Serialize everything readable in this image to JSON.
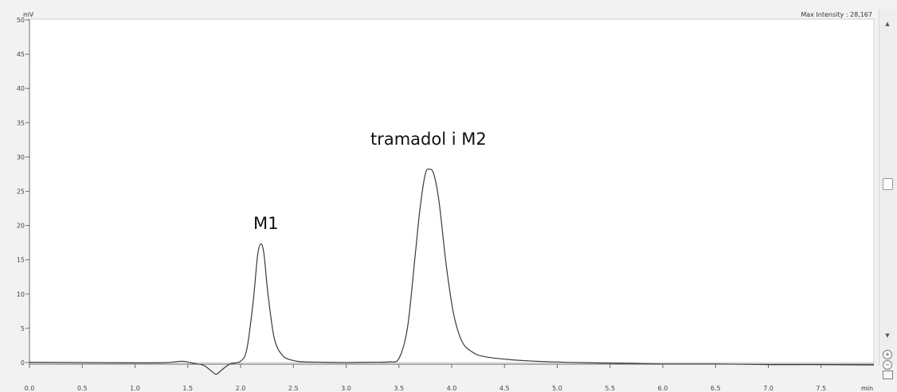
{
  "header": {
    "max_intensity_label": "Max Intensity : 28,167"
  },
  "chart_data": {
    "type": "line",
    "title": "",
    "ylabel": "mV",
    "xlabel": "min",
    "xlim": [
      0.0,
      8.0
    ],
    "ylim": [
      -3,
      50
    ],
    "x_ticks": [
      0.0,
      0.5,
      1.0,
      1.5,
      2.0,
      2.5,
      3.0,
      3.5,
      4.0,
      4.5,
      5.0,
      5.5,
      6.0,
      6.5,
      7.0,
      7.5
    ],
    "x_tick_labels": [
      "0.0",
      "0.5",
      "1.0",
      "1.5",
      "2.0",
      "2.5",
      "3.0",
      "3.5",
      "4.0",
      "4.5",
      "5.0",
      "5.5",
      "6.0",
      "6.5",
      "7.0",
      "7.5"
    ],
    "y_ticks": [
      0,
      5,
      10,
      15,
      20,
      25,
      30,
      35,
      40,
      45,
      50
    ],
    "y_tick_labels": [
      "0",
      "5",
      "10",
      "15",
      "20",
      "25",
      "30",
      "35",
      "40",
      "45",
      "50"
    ],
    "grid": false,
    "series": [
      {
        "x": [
          0.0,
          0.5,
          1.0,
          1.3,
          1.45,
          1.55,
          1.65,
          1.72,
          1.77,
          1.82,
          1.9,
          2.0,
          2.06,
          2.12,
          2.16,
          2.19,
          2.22,
          2.26,
          2.32,
          2.4,
          2.5,
          2.6,
          2.8,
          3.0,
          3.2,
          3.4,
          3.5,
          3.58,
          3.65,
          3.7,
          3.75,
          3.79,
          3.83,
          3.88,
          3.95,
          4.02,
          4.1,
          4.2,
          4.3,
          4.5,
          4.8,
          5.2,
          5.6,
          6.0,
          6.5,
          7.0,
          7.5,
          8.0
        ],
        "y": [
          0.05,
          0.0,
          -0.05,
          0.0,
          0.2,
          -0.1,
          -0.4,
          -1.2,
          -1.7,
          -1.1,
          -0.2,
          0.2,
          2.0,
          9.0,
          15.5,
          17.3,
          16.0,
          10.0,
          3.5,
          1.0,
          0.3,
          0.1,
          0.05,
          0.0,
          0.05,
          0.1,
          0.6,
          5.0,
          15.0,
          22.5,
          27.5,
          28.2,
          27.5,
          23.5,
          14.0,
          7.0,
          3.0,
          1.5,
          0.9,
          0.5,
          0.2,
          0.0,
          -0.1,
          -0.2,
          -0.2,
          -0.3,
          -0.3,
          -0.35
        ]
      }
    ],
    "annotations": [
      {
        "text": "M1",
        "x": 2.24,
        "y": 19.5
      },
      {
        "text": "tramadol i M2",
        "x": 3.78,
        "y": 31.8
      }
    ]
  }
}
